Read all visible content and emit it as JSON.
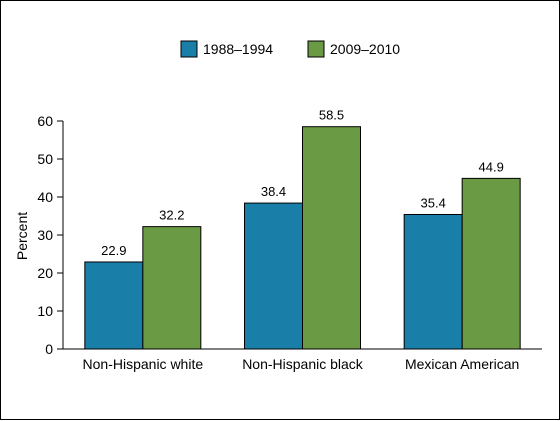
{
  "chart_data": {
    "type": "bar",
    "categories": [
      "Non-Hispanic white",
      "Non-Hispanic black",
      "Mexican American"
    ],
    "series": [
      {
        "name": "1988–1994",
        "values": [
          22.9,
          38.4,
          35.4
        ],
        "color": "#1a7fa8"
      },
      {
        "name": "2009–2010",
        "values": [
          32.2,
          58.5,
          44.9
        ],
        "color": "#6b9a45"
      }
    ],
    "ylabel": "Percent",
    "ylim": [
      0,
      60
    ],
    "yticks": [
      0,
      10,
      20,
      30,
      40,
      50,
      60
    ],
    "legend_position": "top-center",
    "grid": false
  }
}
